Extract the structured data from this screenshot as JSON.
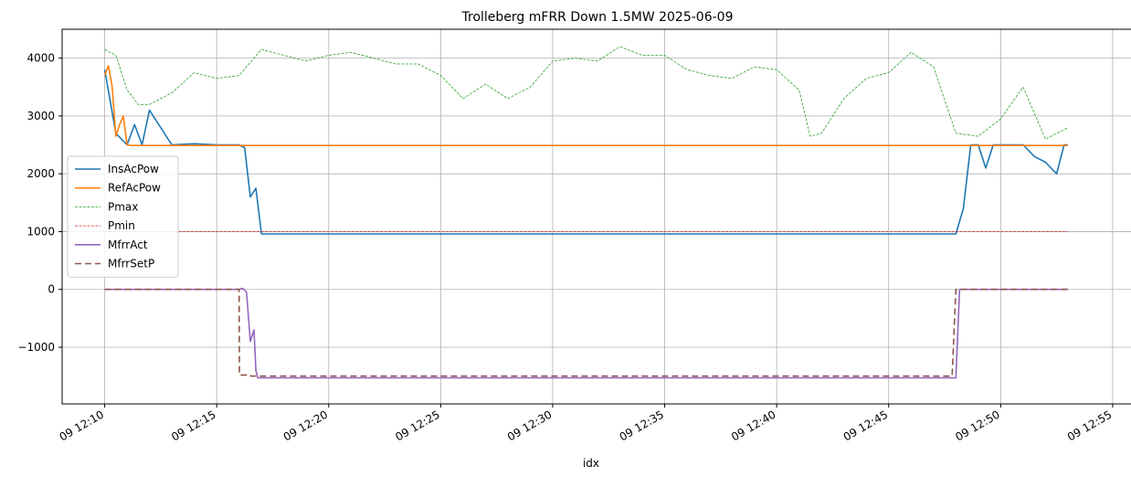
{
  "chart_data": {
    "type": "line",
    "title": "Trolleberg mFRR Down 1.5MW 2025-06-09",
    "xlabel": "idx",
    "ylabel": "",
    "x_unit": "minutes after 2025-06-09 12:10",
    "xlim": [
      "2025-06-09 12:08:06",
      "2025-06-09 12:55:54"
    ],
    "ylim": [
      -1980,
      4500
    ],
    "x_ticks": [
      {
        "label": "09 12:10",
        "value": 0
      },
      {
        "label": "09 12:15",
        "value": 5
      },
      {
        "label": "09 12:20",
        "value": 10
      },
      {
        "label": "09 12:25",
        "value": 15
      },
      {
        "label": "09 12:30",
        "value": 20
      },
      {
        "label": "09 12:35",
        "value": 25
      },
      {
        "label": "09 12:40",
        "value": 30
      },
      {
        "label": "09 12:45",
        "value": 35
      },
      {
        "label": "09 12:50",
        "value": 40
      },
      {
        "label": "09 12:55",
        "value": 45
      }
    ],
    "y_ticks": [
      {
        "label": "−1000",
        "value": -1000
      },
      {
        "label": "0",
        "value": 0
      },
      {
        "label": "1000",
        "value": 1000
      },
      {
        "label": "2000",
        "value": 2000
      },
      {
        "label": "3000",
        "value": 3000
      },
      {
        "label": "4000",
        "value": 4000
      }
    ],
    "grid": true,
    "legend_position": "center-left",
    "series": [
      {
        "name": "InsAcPow",
        "color": "#1f77b4",
        "style": "solid",
        "x": [
          "12:10:00",
          "12:10:30",
          "12:11:00",
          "12:11:20",
          "12:11:40",
          "12:12:00",
          "12:13:00",
          "12:14:00",
          "12:15:00",
          "12:16:00",
          "12:16:15",
          "12:16:30",
          "12:16:45",
          "12:17:00",
          "12:18:00",
          "12:20:00",
          "12:25:00",
          "12:30:00",
          "12:35:00",
          "12:40:00",
          "12:45:00",
          "12:48:00",
          "12:48:20",
          "12:48:40",
          "12:49:00",
          "12:49:20",
          "12:49:40",
          "12:50:00",
          "12:51:00",
          "12:51:30",
          "12:52:00",
          "12:52:30",
          "12:52:50",
          "12:53:00"
        ],
        "y": [
          3800,
          2700,
          2500,
          2850,
          2500,
          3100,
          2500,
          2520,
          2500,
          2500,
          2450,
          1600,
          1750,
          960,
          960,
          960,
          960,
          960,
          960,
          960,
          960,
          960,
          1400,
          2500,
          2500,
          2100,
          2500,
          2500,
          2500,
          2300,
          2200,
          2000,
          2500,
          2500
        ]
      },
      {
        "name": "RefAcPow",
        "color": "#ff7f0e",
        "style": "solid",
        "x": [
          "12:10:00",
          "12:10:10",
          "12:10:20",
          "12:10:30",
          "12:10:40",
          "12:10:50",
          "12:11:00",
          "12:11:10",
          "12:20:00",
          "12:30:00",
          "12:40:00",
          "12:50:00",
          "12:53:00"
        ],
        "y": [
          3700,
          3870,
          3500,
          2650,
          2850,
          3000,
          2500,
          2490,
          2490,
          2490,
          2490,
          2490,
          2490
        ]
      },
      {
        "name": "Pmax",
        "color": "#2ca02c",
        "style": "dashed",
        "x": [
          "12:10:00",
          "12:10:30",
          "12:11:00",
          "12:11:30",
          "12:12:00",
          "12:13:00",
          "12:14:00",
          "12:15:00",
          "12:16:00",
          "12:17:00",
          "12:18:00",
          "12:19:00",
          "12:20:00",
          "12:21:00",
          "12:22:00",
          "12:23:00",
          "12:24:00",
          "12:25:00",
          "12:26:00",
          "12:27:00",
          "12:28:00",
          "12:29:00",
          "12:30:00",
          "12:31:00",
          "12:32:00",
          "12:33:00",
          "12:34:00",
          "12:35:00",
          "12:36:00",
          "12:37:00",
          "12:38:00",
          "12:39:00",
          "12:40:00",
          "12:41:00",
          "12:41:30",
          "12:42:00",
          "12:43:00",
          "12:44:00",
          "12:45:00",
          "12:46:00",
          "12:47:00",
          "12:48:00",
          "12:49:00",
          "12:50:00",
          "12:51:00",
          "12:52:00",
          "12:53:00"
        ],
        "y": [
          4150,
          4050,
          3450,
          3200,
          3200,
          3400,
          3750,
          3650,
          3700,
          4150,
          4050,
          3950,
          4050,
          4100,
          4000,
          3900,
          3900,
          3700,
          3300,
          3550,
          3300,
          3500,
          3950,
          4000,
          3950,
          4200,
          4050,
          4050,
          3800,
          3700,
          3650,
          3850,
          3800,
          3450,
          2650,
          2700,
          3300,
          3650,
          3750,
          4100,
          3850,
          2700,
          2650,
          2950,
          3500,
          2600,
          2800
        ]
      },
      {
        "name": "Pmin",
        "color": "#d62728",
        "style": "dashed",
        "x": [
          "12:10:00",
          "12:53:00"
        ],
        "y": [
          1000,
          1000
        ]
      },
      {
        "name": "MfrrAct",
        "color": "#9467bd",
        "style": "solid",
        "x": [
          "12:10:00",
          "12:16:00",
          "12:16:10",
          "12:16:20",
          "12:16:30",
          "12:16:40",
          "12:16:45",
          "12:16:50",
          "12:17:00",
          "12:20:00",
          "12:30:00",
          "12:40:00",
          "12:47:50",
          "12:48:00",
          "12:48:10",
          "12:53:00"
        ],
        "y": [
          0,
          0,
          20,
          -50,
          -900,
          -700,
          -1400,
          -1530,
          -1530,
          -1530,
          -1530,
          -1530,
          -1530,
          -1530,
          0,
          0
        ]
      },
      {
        "name": "MfrrSetP",
        "color": "#8c564b",
        "style": "longdash",
        "x": [
          "12:10:00",
          "12:16:00",
          "12:16:01",
          "12:16:30",
          "12:16:31",
          "12:47:50",
          "12:48:00",
          "12:53:00"
        ],
        "y": [
          0,
          0,
          -1480,
          -1480,
          -1500,
          -1500,
          0,
          0
        ]
      }
    ]
  }
}
